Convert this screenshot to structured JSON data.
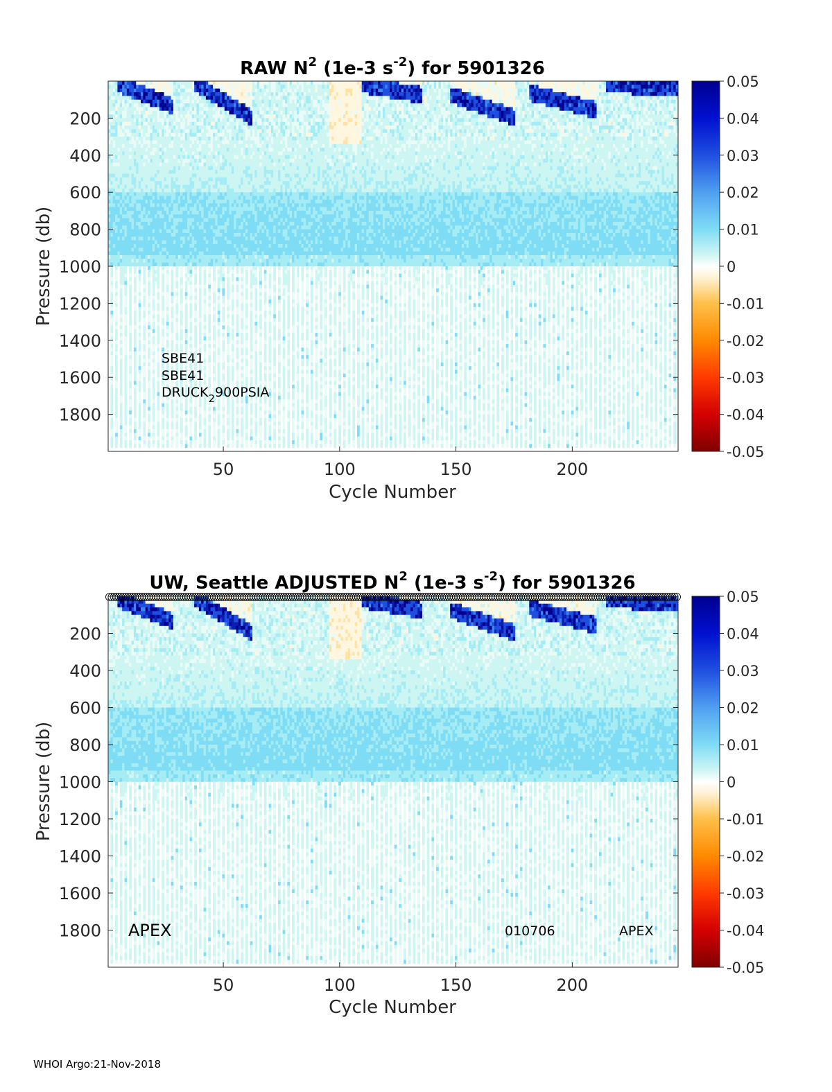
{
  "footer": "WHOI Argo:21-Nov-2018",
  "chart_data": [
    {
      "type": "heatmap",
      "title_parts": [
        "RAW N",
        "2",
        " (1e-3 s",
        "-2",
        ") for 5901326"
      ],
      "xlabel": "Cycle Number",
      "ylabel": "Pressure (db)",
      "xlim": [
        1,
        245
      ],
      "ylim": [
        2000,
        0
      ],
      "y_reversed": true,
      "xticks": [
        50,
        100,
        150,
        200
      ],
      "yticks": [
        200,
        400,
        600,
        800,
        1000,
        1200,
        1400,
        1600,
        1800
      ],
      "colorbar": {
        "colormap": "jet-like diverging (dark red to dark blue, white near 0)",
        "ticks": [
          "0.05",
          "0.04",
          "0.03",
          "0.02",
          "0.01",
          "0",
          "-0.01",
          "-0.02",
          "-0.03",
          "-0.04",
          "-0.05"
        ]
      },
      "annotations": [
        "SBE41",
        "SBE41",
        "DRUCK",
        "2",
        "900PSIA"
      ],
      "data_description_values": {
        "shallow_strat_bands_cycles": [
          [
            5,
            28
          ],
          [
            38,
            62
          ],
          [
            108,
            135
          ],
          [
            148,
            175
          ],
          [
            182,
            210
          ],
          [
            215,
            245
          ]
        ],
        "deep_profiles_below_1000db_every_n_cycles": 2
      }
    },
    {
      "type": "heatmap",
      "title_parts": [
        "UW, Seattle  ADJUSTED N",
        "2",
        " (1e-3 s",
        "-2",
        ") for 5901326"
      ],
      "xlabel": "Cycle Number",
      "ylabel": "Pressure (db)",
      "xlim": [
        1,
        245
      ],
      "ylim": [
        2000,
        0
      ],
      "y_reversed": true,
      "xticks": [
        50,
        100,
        150,
        200
      ],
      "yticks": [
        200,
        400,
        600,
        800,
        1000,
        1200,
        1400,
        1600,
        1800
      ],
      "colorbar": {
        "colormap": "jet-like diverging (dark red to dark blue, white near 0)",
        "ticks": [
          "0.05",
          "0.04",
          "0.03",
          "0.02",
          "0.01",
          "0",
          "-0.01",
          "-0.02",
          "-0.03",
          "-0.04",
          "-0.05"
        ]
      },
      "annotations": [
        "APEX",
        "010706",
        "APEX"
      ],
      "qc_marker_row": "o"
    }
  ],
  "colors": {
    "deep_blue": "#00008f",
    "blue": "#2e6fe6",
    "cyan": "#8fe8f2",
    "light": "#dff7f5",
    "cream": "#fff6df",
    "orange": "#ff9f10",
    "red": "#e00000",
    "dark_red": "#800000"
  }
}
